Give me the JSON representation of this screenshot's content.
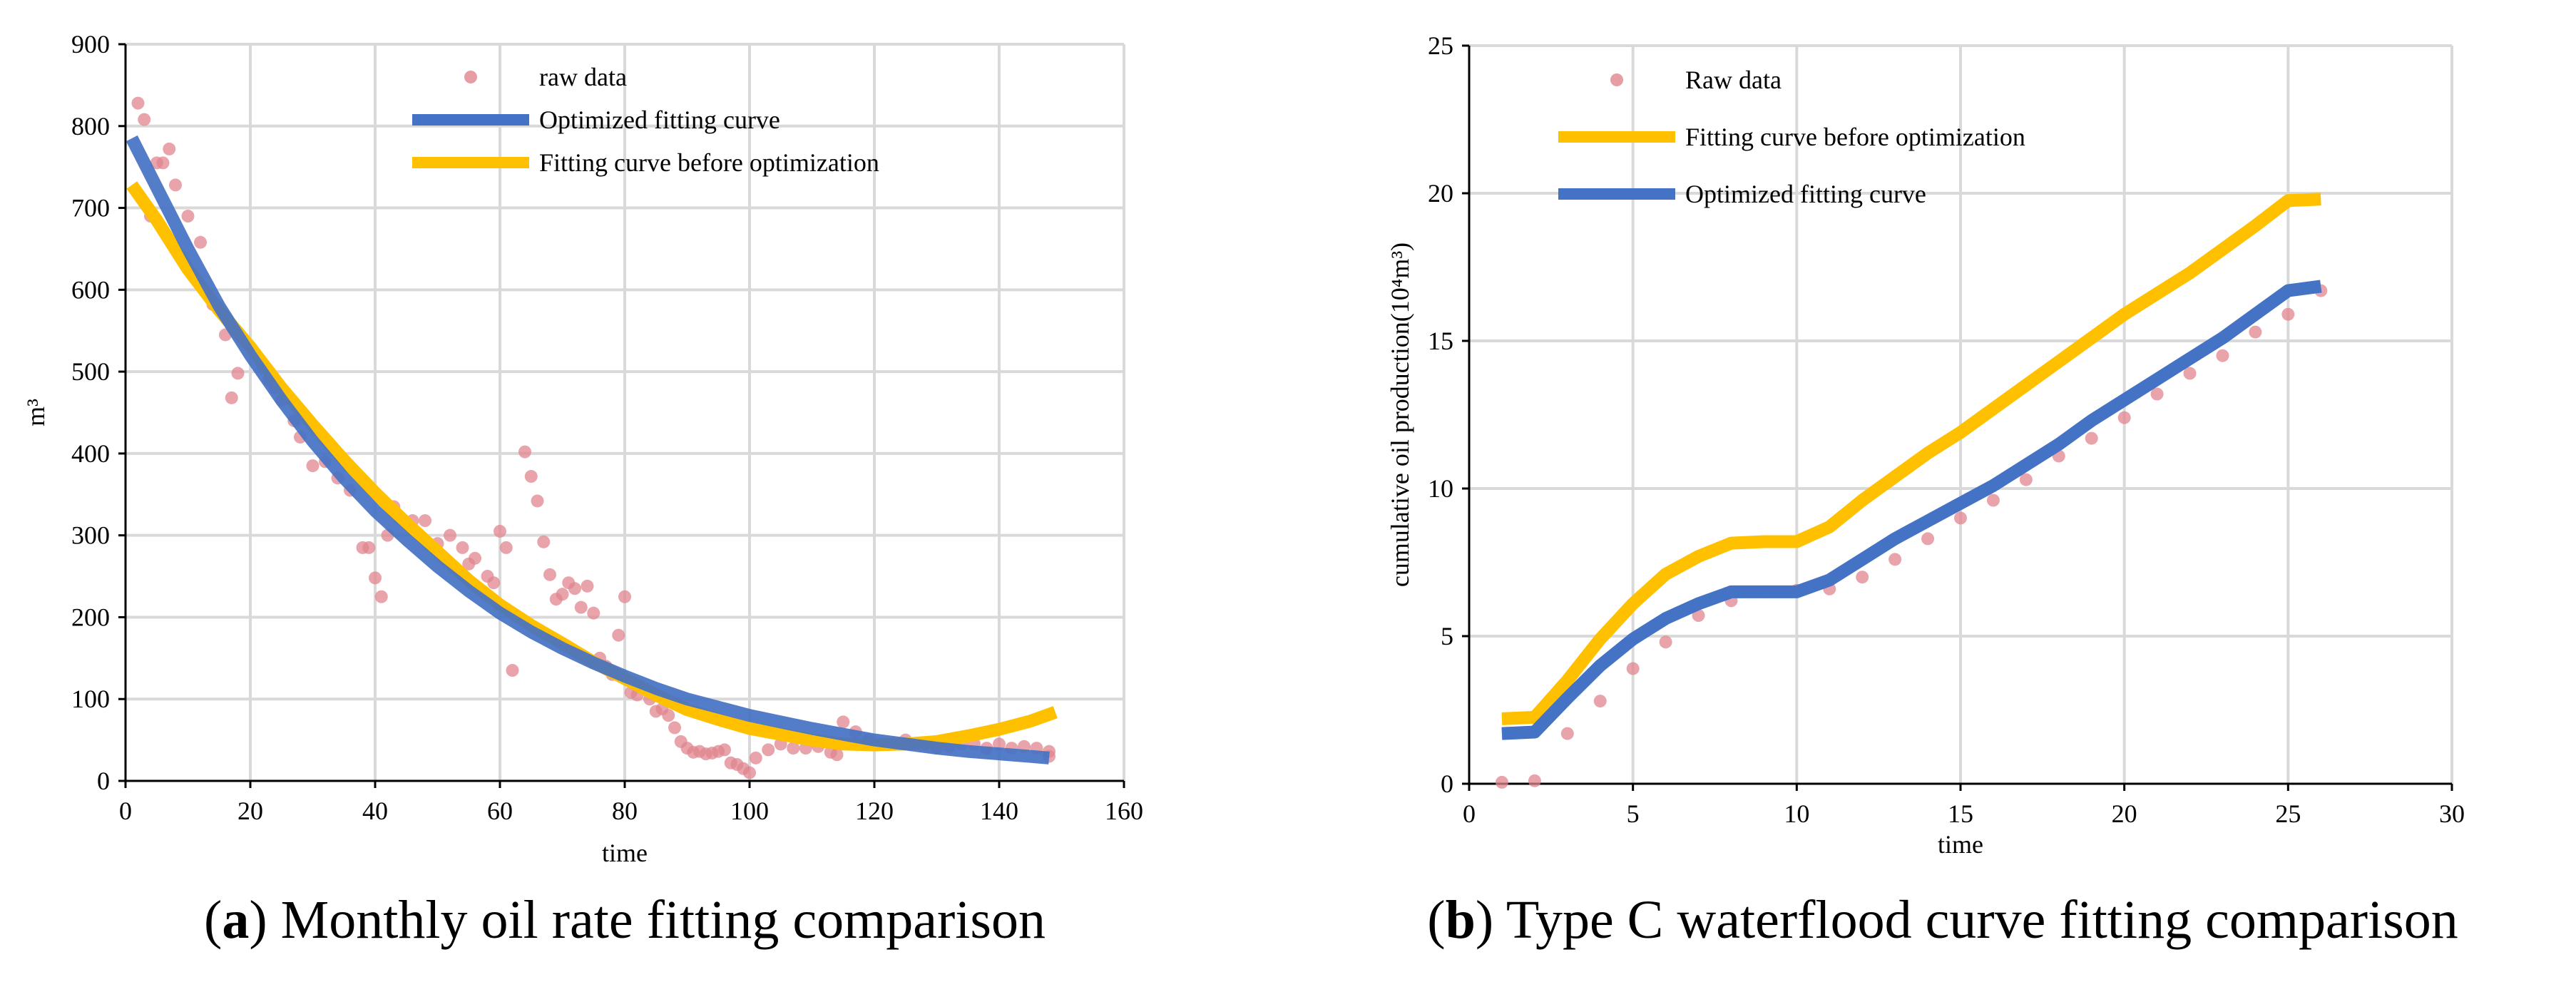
{
  "chart_data": [
    {
      "id": "a",
      "type": "line",
      "caption_letter": "a",
      "caption_text": "Monthly oil rate fitting comparison",
      "xlabel": "time",
      "ylabel": "m³",
      "xlim": [
        0,
        160
      ],
      "ylim": [
        0,
        900
      ],
      "xticks": [
        0,
        20,
        40,
        60,
        80,
        100,
        120,
        140,
        160
      ],
      "yticks": [
        0,
        100,
        200,
        300,
        400,
        500,
        600,
        700,
        800,
        900
      ],
      "grid": true,
      "legend_position": "top-center",
      "colors": {
        "raw": "#e0868d",
        "optimized": "#4472c4",
        "before": "#ffc000"
      },
      "series": [
        {
          "key": "raw",
          "name": "raw data",
          "kind": "scatter",
          "points": [
            [
              2,
              828
            ],
            [
              3,
              808
            ],
            [
              4,
              690
            ],
            [
              5,
              755
            ],
            [
              6,
              755
            ],
            [
              7,
              772
            ],
            [
              8,
              728
            ],
            [
              10,
              690
            ],
            [
              12,
              658
            ],
            [
              14,
              582
            ],
            [
              16,
              545
            ],
            [
              17,
              468
            ],
            [
              18,
              498
            ],
            [
              20,
              530
            ],
            [
              22,
              505
            ],
            [
              23,
              490
            ],
            [
              24,
              480
            ],
            [
              25,
              465
            ],
            [
              27,
              440
            ],
            [
              28,
              420
            ],
            [
              30,
              385
            ],
            [
              32,
              390
            ],
            [
              34,
              370
            ],
            [
              36,
              355
            ],
            [
              38,
              285
            ],
            [
              39,
              285
            ],
            [
              40,
              248
            ],
            [
              41,
              225
            ],
            [
              42,
              300
            ],
            [
              43,
              335
            ],
            [
              44,
              320
            ],
            [
              46,
              318
            ],
            [
              48,
              318
            ],
            [
              50,
              290
            ],
            [
              52,
              300
            ],
            [
              54,
              285
            ],
            [
              55,
              265
            ],
            [
              56,
              272
            ],
            [
              58,
              250
            ],
            [
              59,
              242
            ],
            [
              60,
              305
            ],
            [
              61,
              285
            ],
            [
              62,
              135
            ],
            [
              64,
              402
            ],
            [
              65,
              372
            ],
            [
              66,
              342
            ],
            [
              67,
              292
            ],
            [
              68,
              252
            ],
            [
              69,
              222
            ],
            [
              70,
              228
            ],
            [
              71,
              242
            ],
            [
              72,
              235
            ],
            [
              73,
              212
            ],
            [
              74,
              238
            ],
            [
              75,
              205
            ],
            [
              76,
              150
            ],
            [
              77,
              140
            ],
            [
              78,
              130
            ],
            [
              79,
              178
            ],
            [
              80,
              225
            ],
            [
              81,
              108
            ],
            [
              82,
              105
            ],
            [
              84,
              100
            ],
            [
              85,
              85
            ],
            [
              86,
              88
            ],
            [
              87,
              80
            ],
            [
              88,
              65
            ],
            [
              89,
              48
            ],
            [
              90,
              40
            ],
            [
              91,
              35
            ],
            [
              92,
              36
            ],
            [
              93,
              33
            ],
            [
              94,
              34
            ],
            [
              95,
              36
            ],
            [
              96,
              38
            ],
            [
              97,
              22
            ],
            [
              98,
              20
            ],
            [
              99,
              15
            ],
            [
              100,
              10
            ],
            [
              101,
              28
            ],
            [
              103,
              38
            ],
            [
              105,
              45
            ],
            [
              107,
              40
            ],
            [
              109,
              40
            ],
            [
              111,
              42
            ],
            [
              113,
              35
            ],
            [
              114,
              32
            ],
            [
              115,
              72
            ],
            [
              117,
              60
            ],
            [
              119,
              50
            ],
            [
              121,
              45
            ],
            [
              123,
              45
            ],
            [
              125,
              50
            ],
            [
              128,
              45
            ],
            [
              130,
              40
            ],
            [
              132,
              42
            ],
            [
              134,
              45
            ],
            [
              136,
              45
            ],
            [
              138,
              40
            ],
            [
              140,
              45
            ],
            [
              142,
              40
            ],
            [
              144,
              42
            ],
            [
              146,
              40
            ],
            [
              148,
              36
            ],
            [
              148,
              30
            ]
          ]
        },
        {
          "key": "optimized",
          "name": "Optimized fitting curve",
          "kind": "line",
          "points": [
            [
              1,
              785
            ],
            [
              5,
              725
            ],
            [
              10,
              650
            ],
            [
              15,
              580
            ],
            [
              20,
              520
            ],
            [
              25,
              465
            ],
            [
              30,
              415
            ],
            [
              35,
              370
            ],
            [
              40,
              330
            ],
            [
              45,
              295
            ],
            [
              50,
              262
            ],
            [
              55,
              232
            ],
            [
              60,
              205
            ],
            [
              65,
              182
            ],
            [
              70,
              162
            ],
            [
              75,
              144
            ],
            [
              80,
              128
            ],
            [
              85,
              113
            ],
            [
              90,
              100
            ],
            [
              95,
              90
            ],
            [
              100,
              80
            ],
            [
              105,
              72
            ],
            [
              110,
              64
            ],
            [
              115,
              57
            ],
            [
              120,
              50
            ],
            [
              125,
              45
            ],
            [
              130,
              40
            ],
            [
              135,
              36
            ],
            [
              140,
              33
            ],
            [
              145,
              30
            ],
            [
              148,
              28
            ]
          ]
        },
        {
          "key": "before",
          "name": "Fitting curve before optimization",
          "kind": "line",
          "points": [
            [
              1,
              728
            ],
            [
              5,
              685
            ],
            [
              10,
              625
            ],
            [
              15,
              575
            ],
            [
              20,
              530
            ],
            [
              25,
              480
            ],
            [
              30,
              435
            ],
            [
              35,
              392
            ],
            [
              40,
              352
            ],
            [
              45,
              315
            ],
            [
              50,
              280
            ],
            [
              55,
              245
            ],
            [
              60,
              215
            ],
            [
              65,
              190
            ],
            [
              70,
              168
            ],
            [
              75,
              145
            ],
            [
              80,
              125
            ],
            [
              85,
              105
            ],
            [
              90,
              87
            ],
            [
              95,
              75
            ],
            [
              100,
              64
            ],
            [
              105,
              57
            ],
            [
              110,
              50
            ],
            [
              115,
              45
            ],
            [
              120,
              44
            ],
            [
              125,
              45
            ],
            [
              130,
              48
            ],
            [
              135,
              55
            ],
            [
              140,
              63
            ],
            [
              145,
              73
            ],
            [
              149,
              84
            ]
          ]
        }
      ]
    },
    {
      "id": "b",
      "type": "line",
      "caption_letter": "b",
      "caption_text": "Type C waterflood curve fitting comparison",
      "xlabel": "time",
      "ylabel": "cumulative oil production(10⁴m³)",
      "xlim": [
        0,
        30
      ],
      "ylim": [
        0,
        25
      ],
      "xticks": [
        0,
        5,
        10,
        15,
        20,
        25,
        30
      ],
      "yticks": [
        0,
        5,
        10,
        15,
        20,
        25
      ],
      "grid": true,
      "legend_position": "top-left",
      "colors": {
        "raw": "#e0868d",
        "before": "#ffc000",
        "optimized": "#4472c4"
      },
      "series": [
        {
          "key": "raw",
          "name": "Raw data",
          "kind": "scatter",
          "points": [
            [
              1,
              0.05
            ],
            [
              2,
              0.1
            ],
            [
              3,
              1.7
            ],
            [
              4,
              2.8
            ],
            [
              5,
              3.9
            ],
            [
              6,
              4.8
            ],
            [
              7,
              5.7
            ],
            [
              8,
              6.2
            ],
            [
              9,
              6.5
            ],
            [
              10,
              6.55
            ],
            [
              11,
              6.6
            ],
            [
              12,
              7.0
            ],
            [
              13,
              7.6
            ],
            [
              14,
              8.3
            ],
            [
              15,
              9.0
            ],
            [
              16,
              9.6
            ],
            [
              17,
              10.3
            ],
            [
              18,
              11.1
            ],
            [
              19,
              11.7
            ],
            [
              20,
              12.4
            ],
            [
              21,
              13.2
            ],
            [
              22,
              13.9
            ],
            [
              23,
              14.5
            ],
            [
              24,
              15.3
            ],
            [
              25,
              15.9
            ],
            [
              26,
              16.7
            ]
          ]
        },
        {
          "key": "before",
          "name": "Fitting curve before optimization",
          "kind": "line",
          "points": [
            [
              1,
              2.2
            ],
            [
              2,
              2.25
            ],
            [
              3,
              3.5
            ],
            [
              4,
              4.9
            ],
            [
              5,
              6.1
            ],
            [
              6,
              7.1
            ],
            [
              7,
              7.7
            ],
            [
              8,
              8.15
            ],
            [
              9,
              8.2
            ],
            [
              10,
              8.2
            ],
            [
              11,
              8.7
            ],
            [
              12,
              9.6
            ],
            [
              13,
              10.4
            ],
            [
              14,
              11.2
            ],
            [
              15,
              11.9
            ],
            [
              16,
              12.7
            ],
            [
              17,
              13.5
            ],
            [
              18,
              14.3
            ],
            [
              19,
              15.1
            ],
            [
              20,
              15.9
            ],
            [
              21,
              16.6
            ],
            [
              22,
              17.3
            ],
            [
              23,
              18.1
            ],
            [
              24,
              18.9
            ],
            [
              25,
              19.75
            ],
            [
              26,
              19.8
            ]
          ]
        },
        {
          "key": "optimized",
          "name": "Optimized fitting curve",
          "kind": "line",
          "points": [
            [
              1,
              1.7
            ],
            [
              2,
              1.75
            ],
            [
              3,
              2.9
            ],
            [
              4,
              4.0
            ],
            [
              5,
              4.9
            ],
            [
              6,
              5.6
            ],
            [
              7,
              6.1
            ],
            [
              8,
              6.5
            ],
            [
              9,
              6.5
            ],
            [
              10,
              6.5
            ],
            [
              11,
              6.9
            ],
            [
              12,
              7.6
            ],
            [
              13,
              8.3
            ],
            [
              14,
              8.9
            ],
            [
              15,
              9.5
            ],
            [
              16,
              10.1
            ],
            [
              17,
              10.8
            ],
            [
              18,
              11.5
            ],
            [
              19,
              12.3
            ],
            [
              20,
              13.0
            ],
            [
              21,
              13.7
            ],
            [
              22,
              14.4
            ],
            [
              23,
              15.1
            ],
            [
              24,
              15.9
            ],
            [
              25,
              16.7
            ],
            [
              26,
              16.85
            ]
          ]
        }
      ]
    }
  ]
}
